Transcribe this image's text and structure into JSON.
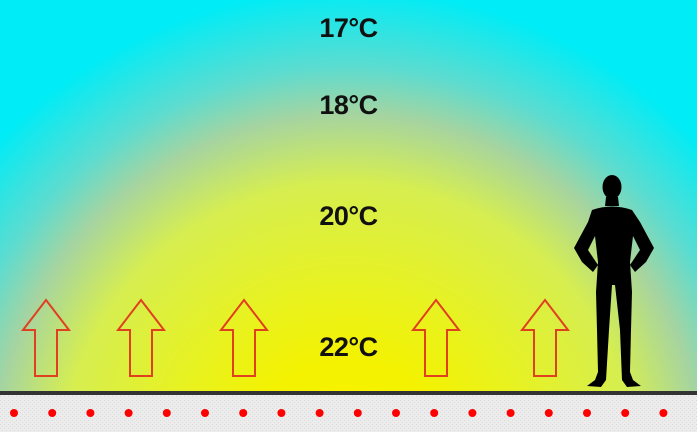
{
  "temperatures": [
    {
      "label": "17°C"
    },
    {
      "label": "18°C"
    },
    {
      "label": "20°C"
    },
    {
      "label": "22°C"
    }
  ],
  "colors": {
    "ceiling": "#00e8f0",
    "middle": "#d8f040",
    "floor": "#f8f000",
    "arrow_outline": "#e04020",
    "heating_dots": "#ff0000",
    "floor_base": "#e8e8e8",
    "floor_line": "#333333",
    "person": "#000000"
  },
  "icons": {
    "arrows": "up-arrow-outline-icon",
    "person": "standing-person-silhouette-icon",
    "heating_pipes": "heating-pipe-dot-icon"
  }
}
